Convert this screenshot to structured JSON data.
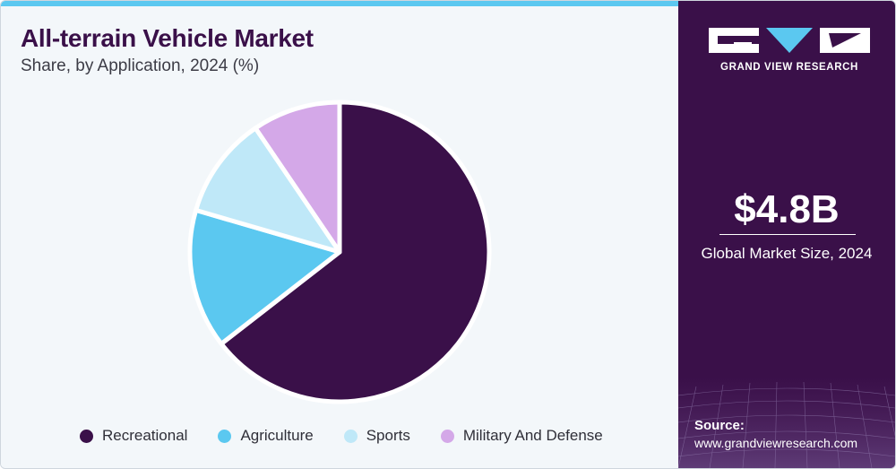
{
  "header": {
    "title": "All-terrain Vehicle Market",
    "subtitle": "Share, by Application, 2024 (%)"
  },
  "chart_data": {
    "type": "pie",
    "categories": [
      "Recreational",
      "Agriculture",
      "Sports",
      "Military And Defense"
    ],
    "values": [
      64.5,
      15,
      11,
      9.5
    ],
    "colors": [
      "#3a1049",
      "#5bc8f0",
      "#bfe8f8",
      "#d4a8e8"
    ],
    "legend": "bottom",
    "start": "top",
    "direction": "clockwise"
  },
  "brand": {
    "logo_text": "GRAND VIEW RESEARCH",
    "logo_colors": [
      "#ffffff",
      "#5bc8f0"
    ]
  },
  "summary": {
    "market_size": "$4.8B",
    "caption": "Global Market Size, 2024"
  },
  "source": {
    "label": "Source:",
    "url": "www.grandviewresearch.com"
  }
}
